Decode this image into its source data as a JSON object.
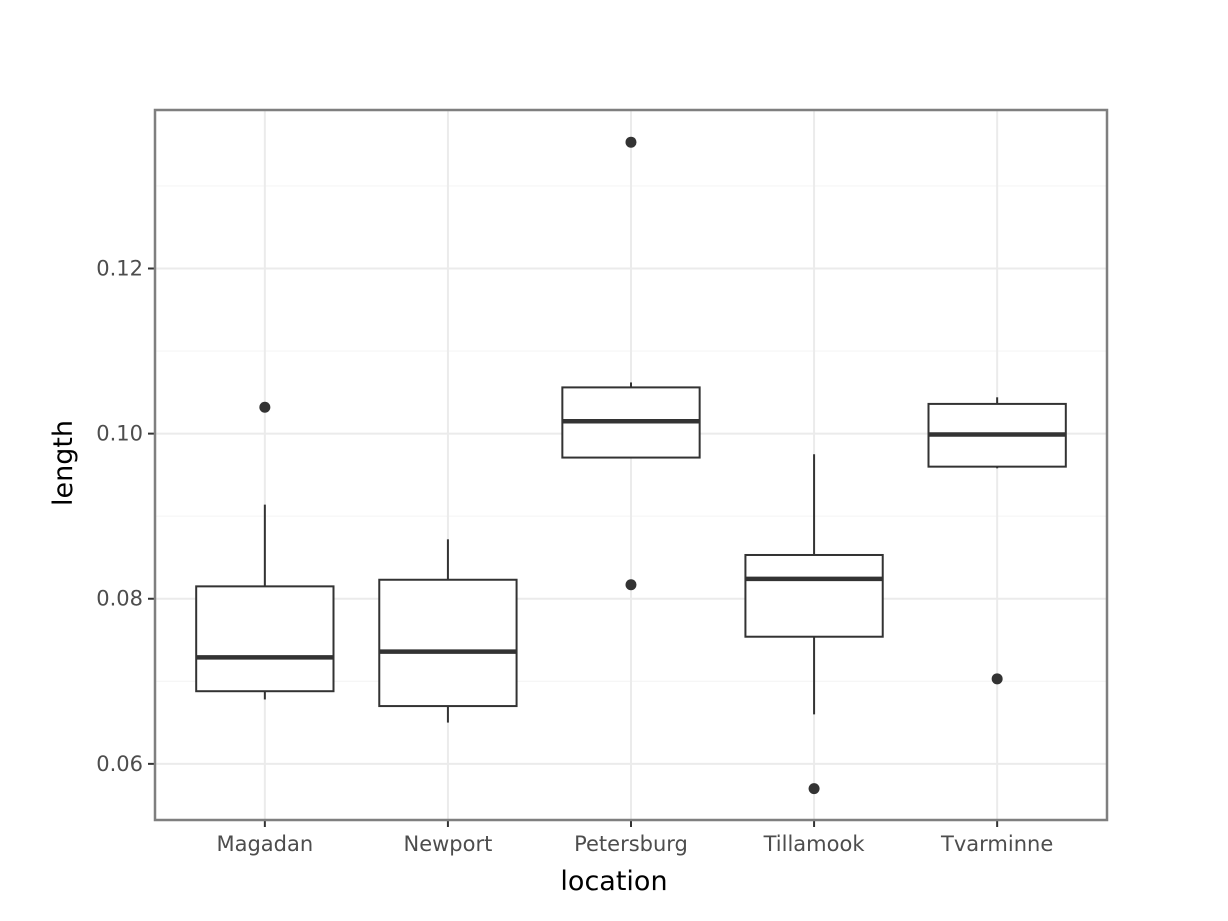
{
  "chart_data": {
    "type": "boxplot",
    "title": "",
    "xlabel": "location",
    "ylabel": "length",
    "ylim": [
      0.0532,
      0.1392
    ],
    "y_ticks": [
      0.06,
      0.08,
      0.1,
      0.12
    ],
    "y_tick_labels": [
      "0.06",
      "0.08",
      "0.10",
      "0.12"
    ],
    "grid": true,
    "colors": {
      "box_stroke": "#333333",
      "grid_major": "#ebebeb",
      "grid_minor": "#f5f5f5",
      "panel_border": "#7f7f7f"
    },
    "categories": [
      "Magadan",
      "Newport",
      "Petersburg",
      "Tillamook",
      "Tvarminne"
    ],
    "boxes": [
      {
        "category": "Magadan",
        "whisker_low": 0.0678,
        "q1": 0.0688,
        "median": 0.0729,
        "q3": 0.0815,
        "whisker_high": 0.0914,
        "outliers": [
          0.1032
        ]
      },
      {
        "category": "Newport",
        "whisker_low": 0.065,
        "q1": 0.067,
        "median": 0.0736,
        "q3": 0.0823,
        "whisker_high": 0.0872,
        "outliers": []
      },
      {
        "category": "Petersburg",
        "whisker_low": 0.097,
        "q1": 0.0971,
        "median": 0.1015,
        "q3": 0.1056,
        "whisker_high": 0.1062,
        "outliers": [
          0.1353,
          0.0817
        ]
      },
      {
        "category": "Tillamook",
        "whisker_low": 0.066,
        "q1": 0.0754,
        "median": 0.0824,
        "q3": 0.0853,
        "whisker_high": 0.0975,
        "outliers": [
          0.057
        ]
      },
      {
        "category": "Tvarminne",
        "whisker_low": 0.0958,
        "q1": 0.096,
        "median": 0.0999,
        "q3": 0.1036,
        "whisker_high": 0.1044,
        "outliers": [
          0.0703
        ]
      }
    ]
  }
}
